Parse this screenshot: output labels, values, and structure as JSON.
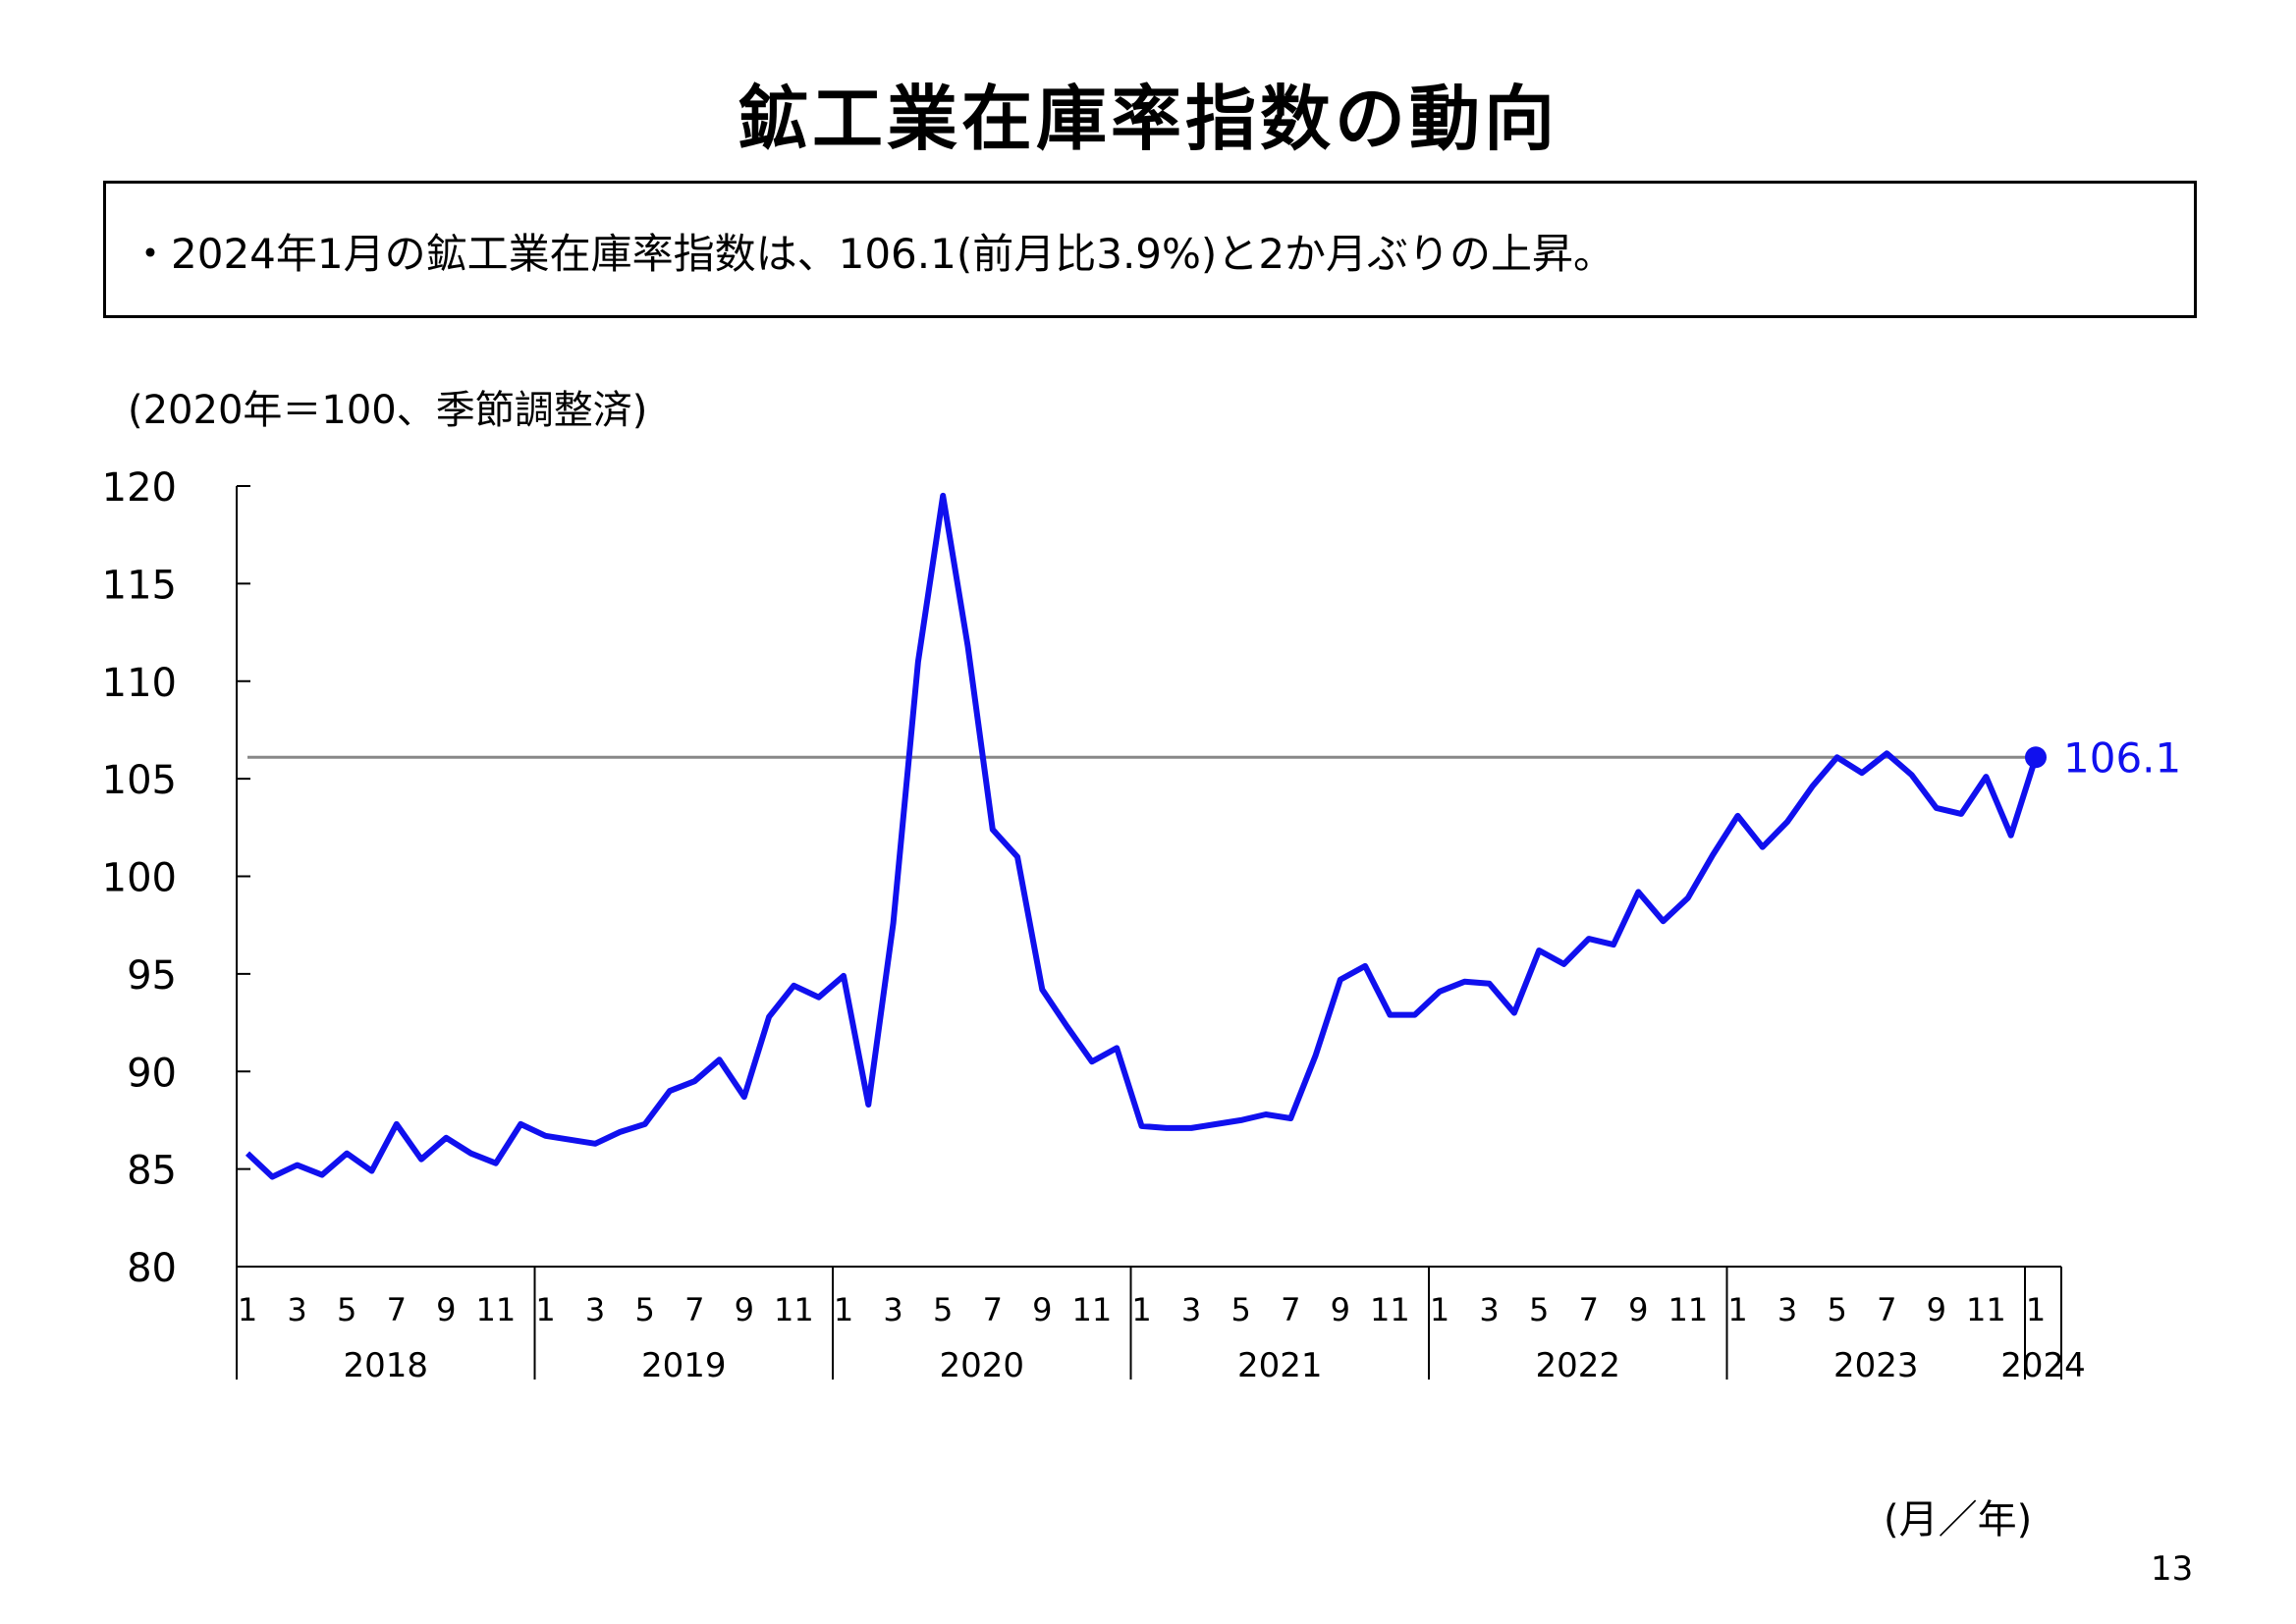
{
  "title": "鉱工業在庫率指数の動向",
  "summary": "・2024年1月の鉱工業在庫率指数は、106.1(前月比3.9%)と2か月ぶりの上昇。",
  "unit_note": "(2020年＝100、季節調整済)",
  "axis_caption": "(月／年)",
  "page_number": "13",
  "chart_data": {
    "type": "line",
    "ylim": [
      80,
      120
    ],
    "y_ticks": [
      "80",
      "85",
      "90",
      "95",
      "100",
      "105",
      "110",
      "115",
      "120"
    ],
    "years": [
      "2018",
      "2019",
      "2020",
      "2021",
      "2022",
      "2023",
      "2024"
    ],
    "month_tick_labels": [
      "1",
      "3",
      "5",
      "7",
      "9",
      "11"
    ],
    "series_color": "#1010ee",
    "reference_line": {
      "value": 106.1,
      "color": "#888888"
    },
    "last_point_label": "106.1",
    "x": [
      "2018-01",
      "2018-02",
      "2018-03",
      "2018-04",
      "2018-05",
      "2018-06",
      "2018-07",
      "2018-08",
      "2018-09",
      "2018-10",
      "2018-11",
      "2018-12",
      "2019-01",
      "2019-02",
      "2019-03",
      "2019-04",
      "2019-05",
      "2019-06",
      "2019-07",
      "2019-08",
      "2019-09",
      "2019-10",
      "2019-11",
      "2019-12",
      "2020-01",
      "2020-02",
      "2020-03",
      "2020-04",
      "2020-05",
      "2020-06",
      "2020-07",
      "2020-08",
      "2020-09",
      "2020-10",
      "2020-11",
      "2020-12",
      "2021-01",
      "2021-02",
      "2021-03",
      "2021-04",
      "2021-05",
      "2021-06",
      "2021-07",
      "2021-08",
      "2021-09",
      "2021-10",
      "2021-11",
      "2021-12",
      "2022-01",
      "2022-02",
      "2022-03",
      "2022-04",
      "2022-05",
      "2022-06",
      "2022-07",
      "2022-08",
      "2022-09",
      "2022-10",
      "2022-11",
      "2022-12",
      "2023-01",
      "2023-02",
      "2023-03",
      "2023-04",
      "2023-05",
      "2023-06",
      "2023-07",
      "2023-08",
      "2023-09",
      "2023-10",
      "2023-11",
      "2023-12",
      "2024-01"
    ],
    "values": [
      85.8,
      84.6,
      85.2,
      84.7,
      85.8,
      84.9,
      87.3,
      85.5,
      86.6,
      85.8,
      85.3,
      87.3,
      86.7,
      86.5,
      86.3,
      86.9,
      87.3,
      89.0,
      89.5,
      90.6,
      88.7,
      92.8,
      94.4,
      93.8,
      94.9,
      88.3,
      97.6,
      111.0,
      119.5,
      111.8,
      102.4,
      101.0,
      94.2,
      92.3,
      90.5,
      91.2,
      87.2,
      87.1,
      87.1,
      87.3,
      87.5,
      87.8,
      87.6,
      90.8,
      94.7,
      95.4,
      92.9,
      92.9,
      94.1,
      94.6,
      94.5,
      93.0,
      96.2,
      95.5,
      96.8,
      96.5,
      99.2,
      97.7,
      98.9,
      101.1,
      103.1,
      101.5,
      102.8,
      104.6,
      106.1,
      105.3,
      106.3,
      105.2,
      103.5,
      103.2,
      105.1,
      102.1,
      106.1
    ]
  }
}
